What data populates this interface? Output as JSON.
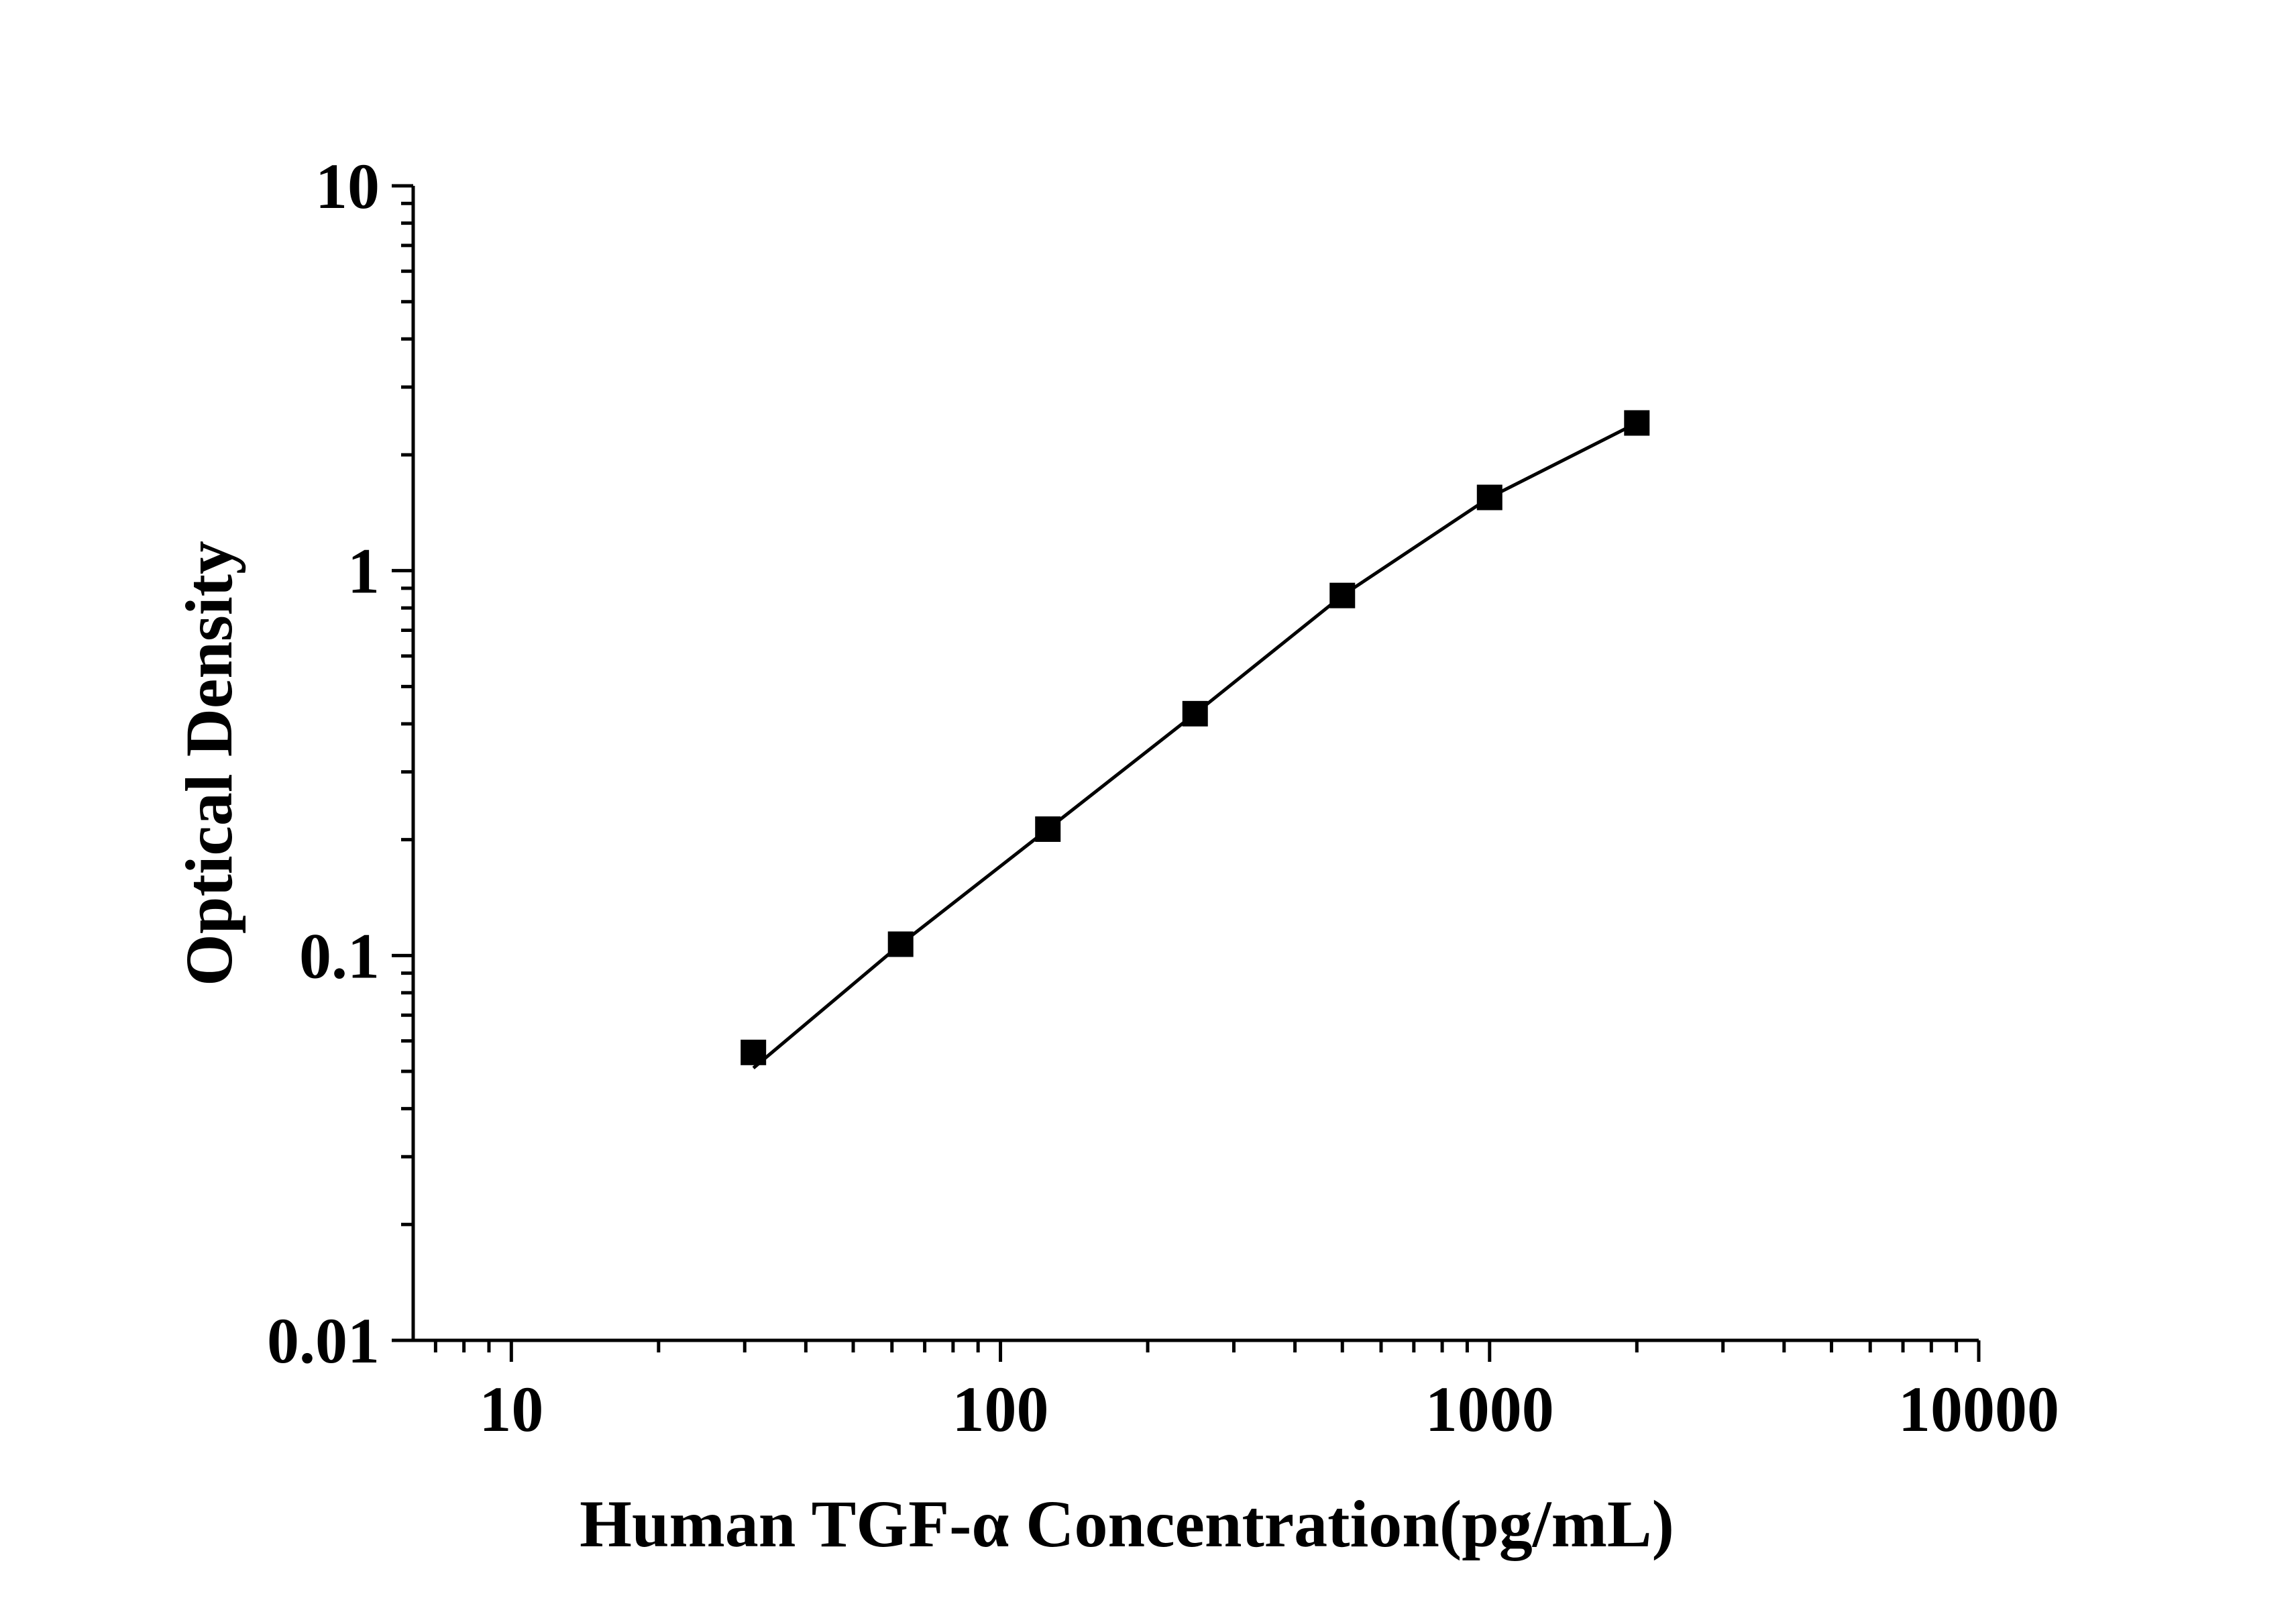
{
  "chart_data": {
    "type": "scatter",
    "title": "",
    "xlabel": "Human TGF-α Concentration(pg/mL)",
    "ylabel": "Optical Density",
    "xscale": "log",
    "yscale": "log",
    "xlim": [
      6.3,
      10000
    ],
    "ylim": [
      0.01,
      10
    ],
    "grid": false,
    "legend": "none",
    "xticks": [
      {
        "value": 10,
        "label": "10"
      },
      {
        "value": 100,
        "label": "100"
      },
      {
        "value": 1000,
        "label": "1000"
      },
      {
        "value": 10000,
        "label": "10000"
      }
    ],
    "yticks": [
      {
        "value": 0.01,
        "label": "0.01"
      },
      {
        "value": 0.1,
        "label": "0.1"
      },
      {
        "value": 1,
        "label": "1"
      },
      {
        "value": 10,
        "label": "10"
      }
    ],
    "series": [
      {
        "marker": "square",
        "color": "#000000",
        "x": [
          31.25,
          62.5,
          125,
          250,
          500,
          1000,
          2000
        ],
        "y": [
          0.056,
          0.107,
          0.213,
          0.425,
          0.862,
          1.55,
          2.42
        ]
      }
    ],
    "fit_line": {
      "color": "#000000",
      "x": [
        31.25,
        62.5,
        125,
        250,
        500,
        1000,
        2000
      ],
      "y": [
        0.051,
        0.107,
        0.213,
        0.425,
        0.862,
        1.55,
        2.42
      ]
    }
  }
}
